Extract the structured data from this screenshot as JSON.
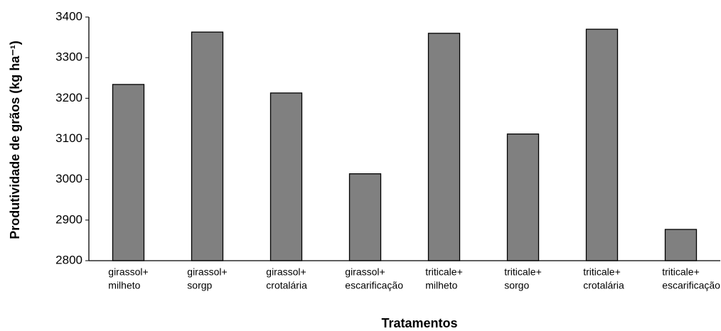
{
  "chart_data": {
    "type": "bar",
    "xlabel": "Tratamentos",
    "ylabel": "Produtividade de grãos (kg ha⁻¹)",
    "categories": [
      [
        "girassol+",
        "milheto"
      ],
      [
        "girassol+",
        "sorgp"
      ],
      [
        "girassol+",
        "crotalária"
      ],
      [
        "girassol+",
        "escarificação"
      ],
      [
        "triticale+",
        "milheto"
      ],
      [
        "triticale+",
        "sorgo"
      ],
      [
        "triticale+",
        "crotalária"
      ],
      [
        "triticale+",
        "escarificação"
      ]
    ],
    "values": [
      3234,
      3363,
      3213,
      3014,
      3360,
      3112,
      3370,
      2877
    ],
    "color": "#808080",
    "ylim": [
      2800,
      3400
    ],
    "yticks": [
      2800,
      2900,
      3000,
      3100,
      3200,
      3300,
      3400
    ],
    "grid": false
  }
}
